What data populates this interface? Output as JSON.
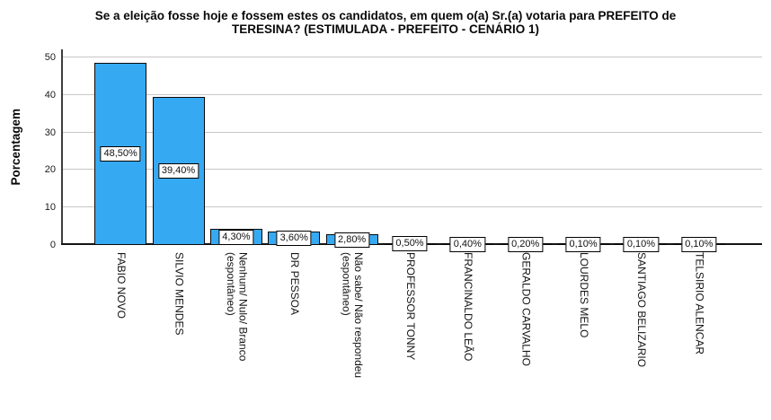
{
  "chart_data": {
    "type": "bar",
    "title": "Se a eleição fosse hoje e fossem estes os candidatos, em quem o(a) Sr.(a) votaria para PREFEITO de\nTERESINA? (ESTIMULADA - PREFEITO - CENÁRIO 1)",
    "ylabel": "Porcentagem",
    "xlabel": "",
    "ylim": [
      0,
      50
    ],
    "yticks": [
      0,
      10,
      20,
      30,
      40,
      50
    ],
    "grid": true,
    "legend": null,
    "bar_color": "#36a9f3",
    "bar_border_color": "#0a0a0a",
    "categories": [
      "FABIO NOVO",
      "SILVIO MENDES",
      "Nenhum/ Nulo/ Branco\n(espontâneo)",
      "DR PESSOA",
      "Não sabe/ Não respondeu\n(espontâneo)",
      "PROFESSOR TONNY",
      "FRANCINALDO LEÃO",
      "GERALDO CARVALHO",
      "LOURDES MELO",
      "SANTIAGO BELIZARIO",
      "TELSIRIO ALENCAR"
    ],
    "values": [
      48.5,
      39.4,
      4.3,
      3.6,
      2.8,
      0.5,
      0.4,
      0.2,
      0.1,
      0.1,
      0.1
    ],
    "value_labels": [
      "48,50%",
      "39,40%",
      "4,30%",
      "3,60%",
      "2,80%",
      "0,50%",
      "0,40%",
      "0,20%",
      "0,10%",
      "0,10%",
      "0,10%"
    ]
  }
}
